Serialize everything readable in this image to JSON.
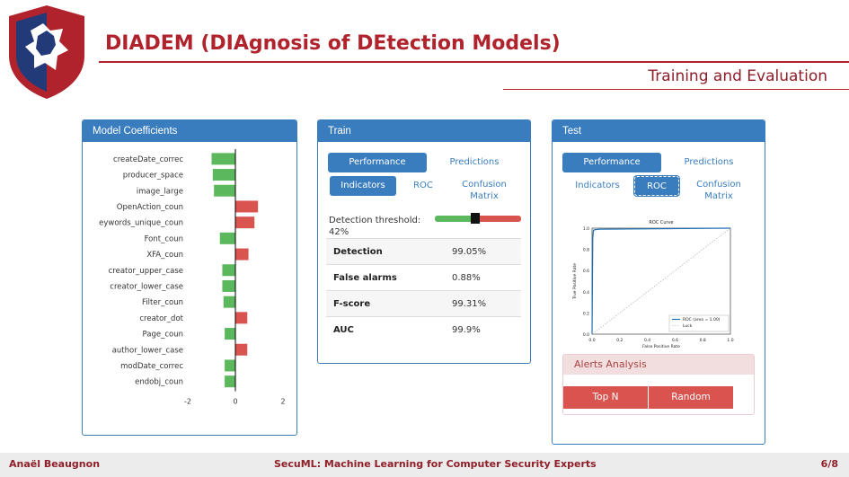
{
  "slide": {
    "title": "DIADEM (DIAgnosis of DEtection Models)",
    "subtitle": "Training and Evaluation",
    "footer_author": "Anaël Beaugnon",
    "footer_title": "SecuML: Machine Learning for Computer Security Experts",
    "footer_page": "6/8"
  },
  "colors": {
    "accent": "#b0232c",
    "panel": "#3a7dbf",
    "positive": "#5cb85c",
    "negative": "#d9534f"
  },
  "coefficients": {
    "title": "Model Coefficients",
    "chart_data": {
      "type": "bar",
      "orientation": "horizontal",
      "categories": [
        "createDate_correc",
        "producer_space",
        "image_large",
        "OpenAction_coun",
        "eywords_unique_coun",
        "Font_coun",
        "XFA_coun",
        "creator_upper_case",
        "creator_lower_case",
        "Filter_coun",
        "creator_dot",
        "Page_coun",
        "author_lower_case",
        "modDate_correc",
        "endobj_coun"
      ],
      "values": [
        -1.0,
        -0.95,
        -0.9,
        0.95,
        0.8,
        -0.65,
        0.55,
        -0.55,
        -0.55,
        -0.5,
        0.5,
        -0.45,
        0.5,
        -0.45,
        -0.45
      ],
      "xticks": [
        "-2",
        "0",
        "2"
      ],
      "xlim": [
        -2,
        2
      ]
    }
  },
  "train": {
    "title": "Train",
    "tab_performance": "Performance",
    "tab_predictions": "Predictions",
    "tab_indicators": "Indicators",
    "tab_roc": "ROC",
    "tab_confusion": "Confusion Matrix",
    "threshold_label": "Detection threshold: 42%",
    "threshold": 0.42,
    "metrics": [
      {
        "label": "Detection",
        "value": "99.05%"
      },
      {
        "label": "False alarms",
        "value": "0.88%"
      },
      {
        "label": "F-score",
        "value": "99.31%"
      },
      {
        "label": "AUC",
        "value": "99.9%"
      }
    ]
  },
  "test": {
    "title": "Test",
    "tab_performance": "Performance",
    "tab_predictions": "Predictions",
    "tab_indicators": "Indicators",
    "tab_roc": "ROC",
    "tab_confusion": "Confusion Matrix",
    "roc_chart": {
      "chart_data": {
        "type": "line",
        "title": "ROC Curve",
        "xlabel": "False Positive Rate",
        "ylabel": "True Positive Rate",
        "xticks": [
          "0.0",
          "0.2",
          "0.4",
          "0.6",
          "0.8",
          "1.0"
        ],
        "yticks": [
          "0.0",
          "0.2",
          "0.4",
          "0.6",
          "0.8",
          "1.0"
        ],
        "xlim": [
          0,
          1
        ],
        "ylim": [
          0,
          1
        ],
        "series": [
          {
            "name": "ROC (area = 1.00)",
            "x": [
              0,
              0.005,
              0.01,
              0.02,
              0.05,
              1.0
            ],
            "y": [
              0,
              0.9,
              0.98,
              0.985,
              0.99,
              1.0
            ]
          },
          {
            "name": "Luck",
            "x": [
              0,
              1
            ],
            "y": [
              0,
              1
            ]
          }
        ],
        "legend": "bottom-right"
      }
    },
    "alerts": {
      "title": "Alerts Analysis",
      "top_n": "Top N",
      "random": "Random"
    }
  }
}
